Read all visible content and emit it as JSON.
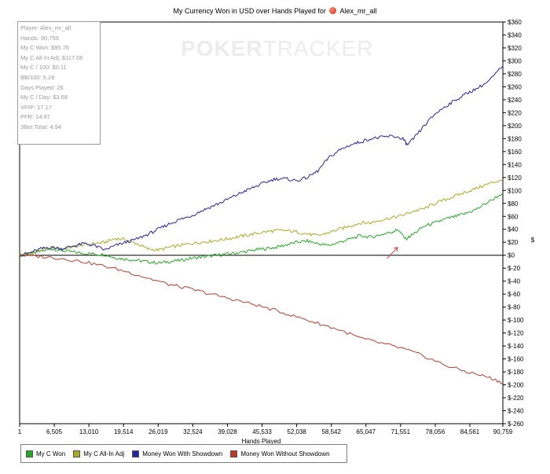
{
  "title": {
    "prefix": "My Currency Won in USD over Hands Played for",
    "player": "Alex_mr_all",
    "icon": "poker-player-icon"
  },
  "watermark": {
    "part1": "POKER",
    "part2": "TRACKER"
  },
  "stats": [
    "Player: Alex_mr_all",
    "Hands: 90,759",
    "My C Won: $95.76",
    "My C All-In Adj: $117.06",
    "My C / 100: $0.11",
    "BB/100: 5.28",
    "Days Played: 26",
    "My C / Day: $3.68",
    "VPIP: 17.17",
    "PFR: 14.87",
    "3Bet Total: 4.94"
  ],
  "chart_data": {
    "type": "line",
    "title": "My Currency Won in USD over Hands Played for Alex_mr_all",
    "xlabel": "Hands Played",
    "ylabel": "$",
    "xlim": [
      1,
      90759
    ],
    "ylim": [
      -260,
      360
    ],
    "x_ticks": [
      1,
      6505,
      13010,
      19514,
      26019,
      32524,
      39028,
      45533,
      52038,
      58542,
      65047,
      71551,
      78056,
      84561,
      90759
    ],
    "x_tick_labels": [
      "1",
      "6,505",
      "13,010",
      "19,514",
      "26,019",
      "32,524",
      "39,028",
      "45,533",
      "52,038",
      "58,542",
      "65,047",
      "71,551",
      "78,056",
      "84,561",
      "90,759"
    ],
    "y_ticks": [
      360,
      340,
      320,
      300,
      280,
      260,
      240,
      220,
      200,
      180,
      160,
      140,
      120,
      100,
      80,
      60,
      40,
      20,
      0,
      -20,
      -40,
      -60,
      -80,
      -100,
      -120,
      -140,
      -160,
      -180,
      -200,
      -220,
      -240,
      -260
    ],
    "y_tick_labels": [
      "$360",
      "$340",
      "$320",
      "$300",
      "$280",
      "$260",
      "$240",
      "$220",
      "$200",
      "$180",
      "$160",
      "$140",
      "$120",
      "$100",
      "$80",
      "$60",
      "$40",
      "$20",
      "$0",
      "$-20",
      "$-40",
      "$-60",
      "$-80",
      "$-100",
      "$-120",
      "$-140",
      "$-160",
      "$-180",
      "$-200",
      "$-220",
      "$-240",
      "$-260"
    ],
    "grid": false,
    "legend_position": "bottom",
    "series": [
      {
        "name": "My C Won",
        "color": "#22aa22",
        "x": [
          1,
          2000,
          4000,
          6000,
          8000,
          10000,
          12000,
          14000,
          16000,
          18000,
          20000,
          22000,
          24000,
          26000,
          28000,
          30000,
          32000,
          34000,
          36000,
          38000,
          40000,
          42000,
          44000,
          46000,
          48000,
          50000,
          52000,
          54000,
          56000,
          58000,
          60000,
          62000,
          64000,
          66000,
          68000,
          70000,
          71000,
          72500,
          74000,
          76000,
          78000,
          80000,
          82000,
          84000,
          86000,
          88000,
          90759
        ],
        "y": [
          0,
          2,
          6,
          10,
          7,
          5,
          3,
          2,
          1,
          -4,
          -6,
          -8,
          -10,
          -12,
          -10,
          -8,
          -5,
          -3,
          -1,
          1,
          3,
          5,
          8,
          10,
          12,
          16,
          20,
          22,
          18,
          15,
          20,
          25,
          30,
          28,
          32,
          36,
          40,
          25,
          33,
          45,
          50,
          56,
          60,
          65,
          72,
          82,
          96
        ]
      },
      {
        "name": "My C All-In Adj",
        "color": "#aaaa22",
        "x": [
          1,
          2000,
          4000,
          6000,
          8000,
          10000,
          12000,
          14000,
          16000,
          18000,
          20000,
          22000,
          24000,
          26000,
          28000,
          30000,
          32000,
          34000,
          36000,
          38000,
          40000,
          42000,
          44000,
          46000,
          48000,
          50000,
          52000,
          54000,
          56000,
          58000,
          60000,
          62000,
          64000,
          66000,
          68000,
          70000,
          72000,
          74000,
          76000,
          78000,
          80000,
          82000,
          84000,
          86000,
          88000,
          90759
        ],
        "y": [
          0,
          3,
          8,
          12,
          10,
          13,
          16,
          18,
          20,
          26,
          24,
          18,
          10,
          8,
          12,
          15,
          18,
          20,
          22,
          24,
          27,
          30,
          33,
          36,
          38,
          38,
          36,
          33,
          30,
          35,
          40,
          45,
          50,
          50,
          55,
          58,
          62,
          68,
          72,
          80,
          86,
          92,
          98,
          104,
          110,
          117
        ]
      },
      {
        "name": "Money Won With Showdown",
        "color": "#2222aa",
        "x": [
          1,
          2000,
          4000,
          6000,
          8000,
          10000,
          12000,
          14000,
          16000,
          18000,
          20000,
          22000,
          24000,
          26000,
          28000,
          30000,
          32000,
          34000,
          36000,
          38000,
          40000,
          42000,
          44000,
          46000,
          48000,
          50000,
          52000,
          54000,
          56000,
          58000,
          60000,
          62000,
          64000,
          66000,
          68000,
          70000,
          72000,
          72800,
          74000,
          76000,
          78000,
          80000,
          82000,
          84000,
          86000,
          88000,
          90759
        ],
        "y": [
          0,
          4,
          10,
          12,
          10,
          14,
          18,
          15,
          8,
          15,
          20,
          25,
          32,
          40,
          48,
          55,
          60,
          68,
          75,
          82,
          90,
          98,
          105,
          112,
          118,
          118,
          115,
          120,
          130,
          150,
          162,
          170,
          175,
          180,
          182,
          184,
          180,
          170,
          180,
          200,
          218,
          230,
          240,
          250,
          258,
          268,
          292
        ]
      },
      {
        "name": "Money Won Without Showdown",
        "color": "#c0392b",
        "x": [
          1,
          4000,
          8000,
          12000,
          16000,
          20000,
          24000,
          28000,
          32000,
          36000,
          40000,
          44000,
          48000,
          52000,
          56000,
          60000,
          64000,
          68000,
          72000,
          76000,
          80000,
          84000,
          88000,
          90759
        ],
        "y": [
          0,
          -2,
          -5,
          -10,
          -17,
          -25,
          -35,
          -45,
          -52,
          -60,
          -68,
          -76,
          -85,
          -95,
          -105,
          -115,
          -128,
          -136,
          -144,
          -156,
          -170,
          -180,
          -188,
          -197
        ]
      }
    ]
  },
  "annotation": {
    "kind": "red-arrow-pointer",
    "color": "#e03030"
  }
}
